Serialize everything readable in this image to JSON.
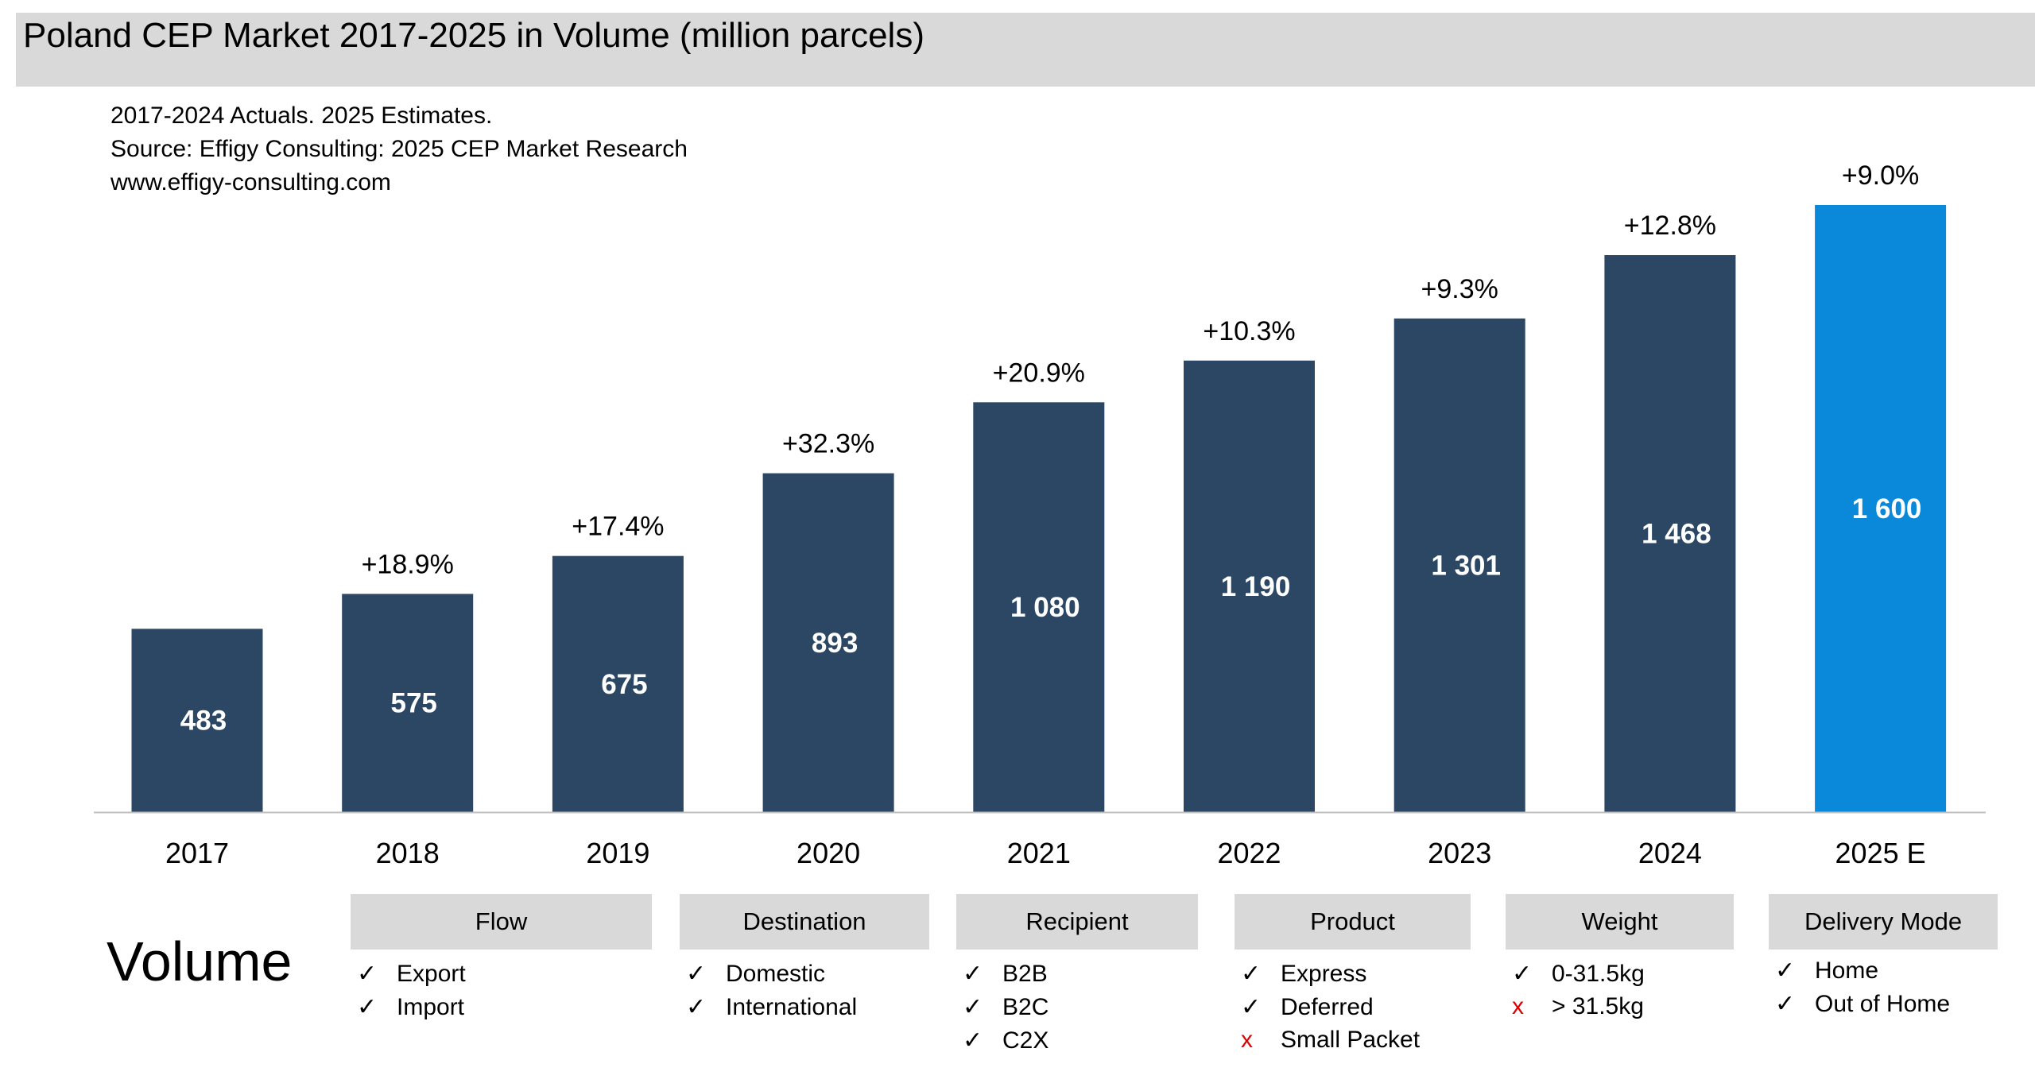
{
  "title": "Poland CEP Market 2017-2025 in Volume (million parcels)",
  "notes": [
    "2017-2024 Actuals. 2025 Estimates.",
    "Source: Effigy Consulting: 2025 CEP Market Research",
    "www.effigy-consulting.com"
  ],
  "chart_data": {
    "type": "bar",
    "categories": [
      "2017",
      "2018",
      "2019",
      "2020",
      "2021",
      "2022",
      "2023",
      "2024",
      "2025 E"
    ],
    "values": [
      483,
      575,
      675,
      893,
      1080,
      1190,
      1301,
      1468,
      1600
    ],
    "value_labels": [
      "483",
      "575",
      "675",
      "893",
      "1 080",
      "1 190",
      "1 301",
      "1 468",
      "1 600"
    ],
    "growth_labels": [
      "",
      "+18.9%",
      "+17.4%",
      "+32.3%",
      "+20.9%",
      "+10.3%",
      "+9.3%",
      "+12.8%",
      "+9.0%"
    ],
    "ylim": [
      0,
      1600
    ],
    "grid": false,
    "colors": {
      "actual": "#2c4764",
      "estimate": "#0a89db"
    }
  },
  "footer": {
    "label": "Volume",
    "columns": [
      {
        "header": "Flow",
        "items": [
          {
            "text": "Export",
            "ok": true
          },
          {
            "text": "Import",
            "ok": true
          }
        ]
      },
      {
        "header": "Destination",
        "items": [
          {
            "text": "Domestic",
            "ok": true
          },
          {
            "text": "International",
            "ok": true
          }
        ]
      },
      {
        "header": "Recipient",
        "items": [
          {
            "text": "B2B",
            "ok": true
          },
          {
            "text": "B2C",
            "ok": true
          },
          {
            "text": "C2X",
            "ok": true
          }
        ]
      },
      {
        "header": "Product",
        "items": [
          {
            "text": "Express",
            "ok": true
          },
          {
            "text": "Deferred",
            "ok": true
          },
          {
            "text": "Small Packet",
            "ok": false
          }
        ]
      },
      {
        "header": "Weight",
        "items": [
          {
            "text": "0-31.5kg",
            "ok": true
          },
          {
            "text": "> 31.5kg",
            "ok": false
          }
        ]
      },
      {
        "header": "Delivery Mode",
        "items": [
          {
            "text": "Home",
            "ok": true
          },
          {
            "text": "Out of Home",
            "ok": true
          }
        ]
      }
    ],
    "check_mark": "✓",
    "cross_mark": "x"
  }
}
